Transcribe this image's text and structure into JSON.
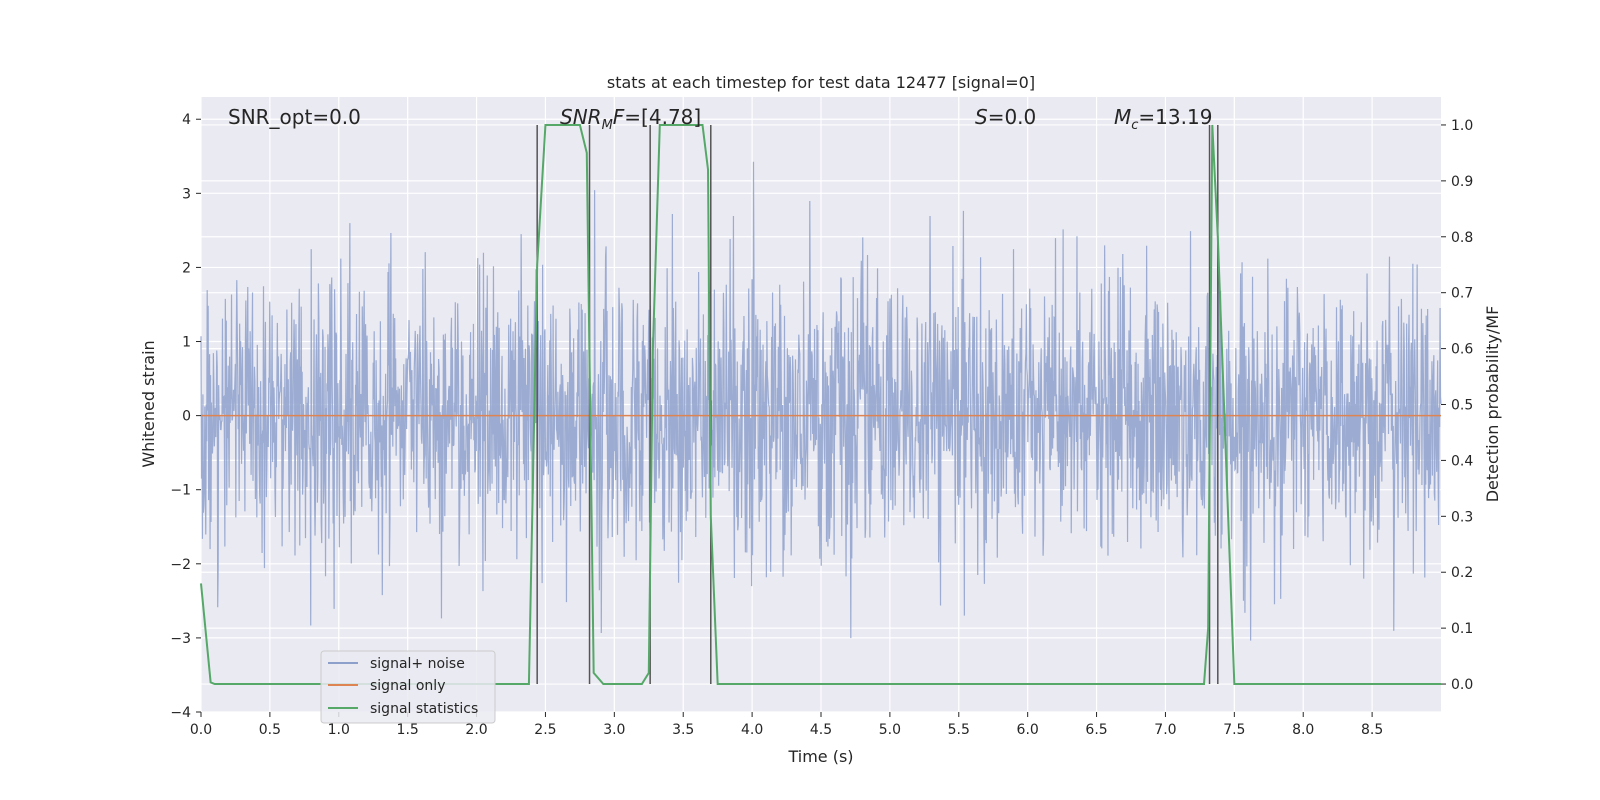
{
  "chart_data": {
    "type": "line",
    "title": "stats at each timestep for test data 12477 [signal=0]",
    "xlabel": "Time (s)",
    "ylabel_left": "Whitened strain",
    "ylabel_right": "Detection probability/MF",
    "xlim": [
      0,
      9
    ],
    "ylim_left": [
      -4,
      4.3
    ],
    "ylim_right": [
      -0.05,
      1.05
    ],
    "grid": true,
    "legend_position": "lower-left",
    "x_ticks": [
      0.0,
      0.5,
      1.0,
      1.5,
      2.0,
      2.5,
      3.0,
      3.5,
      4.0,
      4.5,
      5.0,
      5.5,
      6.0,
      6.5,
      7.0,
      7.5,
      8.0,
      8.5
    ],
    "x_tick_labels": [
      "0.0",
      "0.5",
      "1.0",
      "1.5",
      "2.0",
      "2.5",
      "3.0",
      "3.5",
      "4.0",
      "4.5",
      "5.0",
      "5.5",
      "6.0",
      "6.5",
      "7.0",
      "7.5",
      "8.0",
      "8.5"
    ],
    "y_left_ticks": [
      -4,
      -3,
      -2,
      -1,
      0,
      1,
      2,
      3,
      4
    ],
    "y_left_tick_labels": [
      "−4",
      "−3",
      "−2",
      "−1",
      "0",
      "1",
      "2",
      "3",
      "4"
    ],
    "y_right_ticks": [
      0.0,
      0.1,
      0.2,
      0.3,
      0.4,
      0.5,
      0.6,
      0.7,
      0.8,
      0.9,
      1.0
    ],
    "y_right_tick_labels": [
      "0.0",
      "0.1",
      "0.2",
      "0.3",
      "0.4",
      "0.5",
      "0.6",
      "0.7",
      "0.8",
      "0.9",
      "1.0"
    ],
    "annotations": [
      {
        "id": "snr-opt",
        "text": "SNR_opt=0.0"
      },
      {
        "id": "snr-mf",
        "text": "SNR_MF=[4.78]"
      },
      {
        "id": "s-stat",
        "text": "S=0.0"
      },
      {
        "id": "mc",
        "text": "M_c=13.19"
      }
    ],
    "series": [
      {
        "name": "signal+ noise",
        "color": "#8da0cb",
        "axis": "left",
        "style": "noise",
        "typical_amplitude": 1.3,
        "peak_amplitude": 3.5
      },
      {
        "name": "signal only",
        "color": "#dd8452",
        "axis": "left",
        "x": [
          0,
          9
        ],
        "y": [
          0,
          0
        ]
      },
      {
        "name": "signal statistics",
        "color": "#55a868",
        "axis": "right",
        "x": [
          0.0,
          0.07,
          0.1,
          2.38,
          2.44,
          2.5,
          2.75,
          2.8,
          2.85,
          2.92,
          3.2,
          3.25,
          3.28,
          3.33,
          3.64,
          3.68,
          3.7,
          3.75,
          7.28,
          7.31,
          7.34,
          7.38,
          7.5,
          9.0
        ],
        "y": [
          0.18,
          0.003,
          0.0,
          0.0,
          0.75,
          1.0,
          1.0,
          0.95,
          0.02,
          0.0,
          0.0,
          0.02,
          0.6,
          1.0,
          1.0,
          0.92,
          0.3,
          0.0,
          0.0,
          0.1,
          1.0,
          0.8,
          0.0,
          0.0
        ]
      }
    ],
    "vertical_markers": {
      "color": "#555555",
      "x": [
        2.44,
        2.82,
        3.26,
        3.7,
        7.32,
        7.38
      ],
      "y_range_right": [
        0.0,
        1.0
      ]
    }
  }
}
